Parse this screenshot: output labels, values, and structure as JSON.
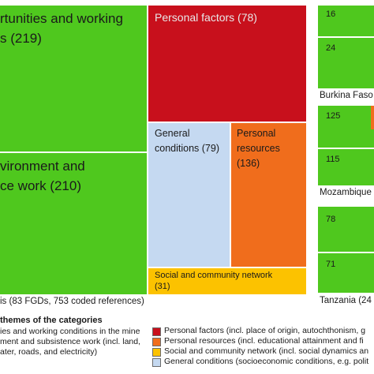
{
  "chart_data": {
    "type": "treemap",
    "main_panel": {
      "caption": "is (83 FGDs, 753 coded references)",
      "tiles": [
        {
          "name": "rtunities and working\ns (219)",
          "category": "opportunities",
          "value": 219,
          "color": "#4fc81e"
        },
        {
          "name": "Personal factors (78)",
          "category": "personal-factors",
          "value": 78,
          "color": "#c8101c"
        },
        {
          "name": "vironment and\nce work (210)",
          "category": "environment",
          "value": 210,
          "color": "#4fc81e"
        },
        {
          "name": "General\nconditions (79)",
          "category": "general-conditions",
          "value": 79,
          "color": "#c5d9f1"
        },
        {
          "name": "Personal\nresources\n(136)",
          "category": "personal-resources",
          "value": 136,
          "color": "#f06d1c"
        },
        {
          "name": "Social and community network\n(31)",
          "category": "social-network",
          "value": 31,
          "color": "#fcc200"
        }
      ]
    },
    "country_panels": [
      {
        "caption": "Burkina Faso",
        "values": [
          "16",
          "24"
        ]
      },
      {
        "caption": "Mozambique",
        "values": [
          "125",
          "115"
        ]
      },
      {
        "caption": "Tanzania (24",
        "values": [
          "78",
          "71"
        ]
      }
    ],
    "legend": {
      "title": "themes of the categories",
      "left_items": [
        "ies and working conditions in the mine",
        "ment and subsistence work (incl. land,",
        "ater, roads, and electricity)"
      ],
      "right_items": [
        {
          "text": "Personal factors (incl. place of origin, autochthonism, g",
          "color": "#c8101c"
        },
        {
          "text": "Personal resources (incl. educational attainment and fi",
          "color": "#f06d1c"
        },
        {
          "text": "Social and community network (incl. social dynamics an",
          "color": "#fcc200"
        },
        {
          "text": "General conditions (socioeconomic conditions, e.g. polit",
          "color": "#c5d9f1"
        }
      ]
    }
  }
}
